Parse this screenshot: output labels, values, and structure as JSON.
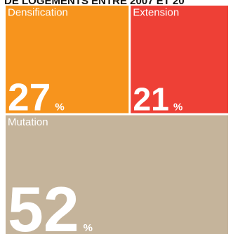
{
  "chart_data": {
    "type": "treemap",
    "title": "DE LOGEMENTS ENTRE 2007 ET 20",
    "unit": "%",
    "categories": [
      "Densification",
      "Extension",
      "Mutation"
    ],
    "values": [
      27,
      21,
      52
    ],
    "colors": [
      "#f7941d",
      "#ee4036",
      "#c5b49b"
    ]
  }
}
